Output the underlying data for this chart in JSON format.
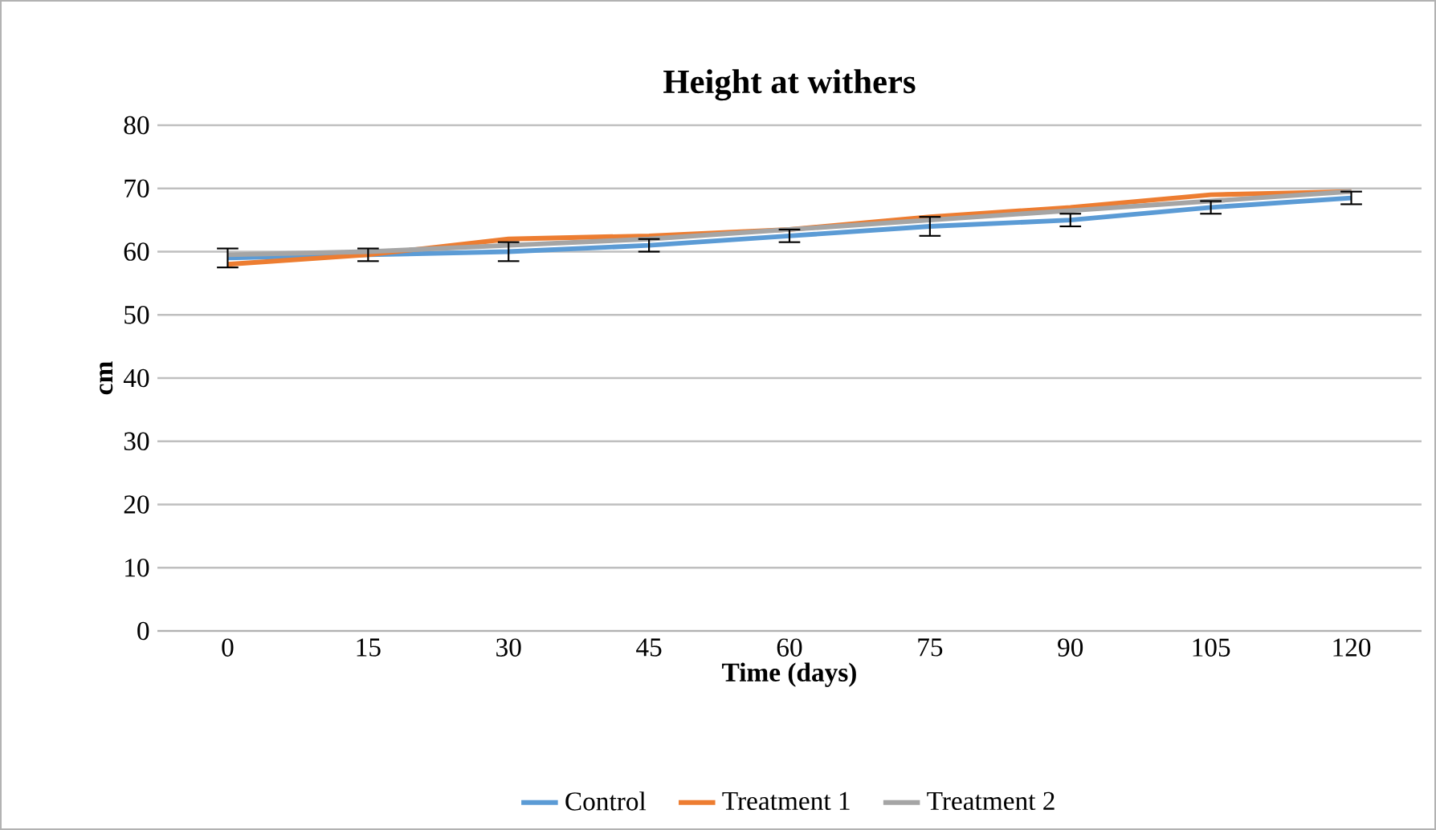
{
  "chart_data": {
    "type": "line",
    "title": "Height at withers",
    "xlabel": "Time (days)",
    "ylabel": "cm",
    "categories": [
      "0",
      "15",
      "30",
      "45",
      "60",
      "75",
      "90",
      "105",
      "120"
    ],
    "series": [
      {
        "name": "Control",
        "color": "#5b9bd5",
        "values": [
          59,
          59.5,
          60,
          61,
          62.5,
          64,
          65,
          67,
          68.5
        ],
        "errors": [
          1.5,
          1,
          1.5,
          1,
          1,
          1.5,
          1,
          1,
          1
        ]
      },
      {
        "name": "Treatment 1",
        "color": "#ed7d31",
        "values": [
          58,
          59.5,
          62,
          62.5,
          63.5,
          65.5,
          67,
          69,
          69.5
        ]
      },
      {
        "name": "Treatment 2",
        "color": "#a5a5a5",
        "values": [
          59.5,
          60,
          61,
          62,
          63.5,
          65,
          66.5,
          68,
          69.5
        ]
      }
    ],
    "ylim": [
      0,
      80
    ],
    "yticks": [
      0,
      10,
      20,
      30,
      40,
      50,
      60,
      70,
      80
    ],
    "grid": "y",
    "legend": "bottom",
    "marker": "none",
    "line_style": "solid"
  }
}
